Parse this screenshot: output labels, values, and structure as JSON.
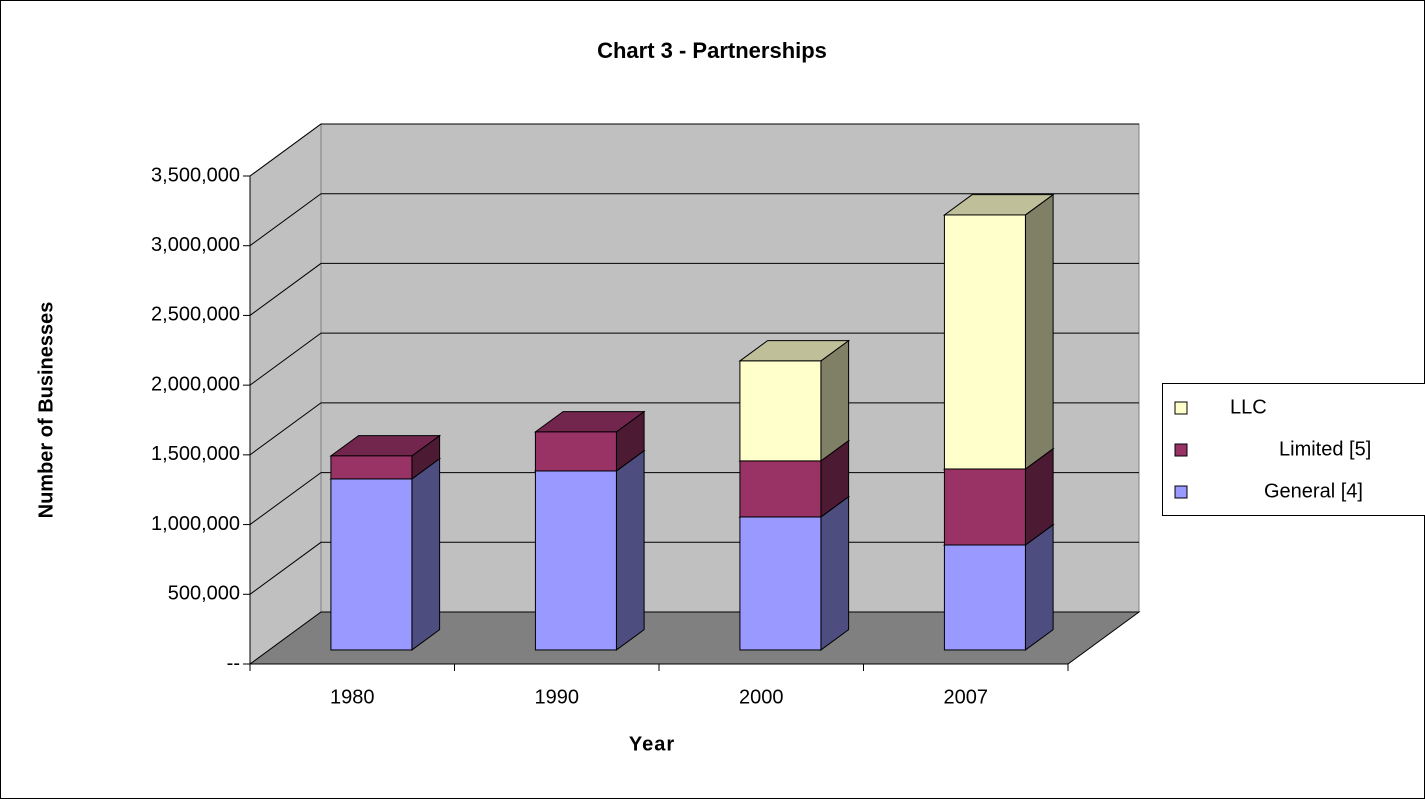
{
  "chart_data": {
    "type": "bar3d_stacked",
    "title": "Chart 3 - Partnerships",
    "x_label": "Year",
    "y_label": "Number of Businesses",
    "categories": [
      "1980",
      "1990",
      "2000",
      "2007"
    ],
    "series": [
      {
        "name": "General [4]",
        "color": "#9999ff",
        "values": [
          1227000,
          1284000,
          954000,
          753000
        ]
      },
      {
        "name": "Limited [5]",
        "color": "#993366",
        "values": [
          165000,
          280000,
          402000,
          545000
        ]
      },
      {
        "name": "LLC",
        "color": "#ffffcc",
        "values": [
          0,
          0,
          717000,
          1822000
        ]
      }
    ],
    "ylim": [
      0,
      3500000
    ],
    "yticks": [
      {
        "value": 0,
        "label": "--"
      },
      {
        "value": 500000,
        "label": "500,000"
      },
      {
        "value": 1000000,
        "label": "1,000,000"
      },
      {
        "value": 1500000,
        "label": "1,500,000"
      },
      {
        "value": 2000000,
        "label": "2,000,000"
      },
      {
        "value": 2500000,
        "label": "2,500,000"
      },
      {
        "value": 3000000,
        "label": "3,000,000"
      },
      {
        "value": 3500000,
        "label": "3,500,000"
      }
    ],
    "grid": true,
    "legend": "right"
  }
}
